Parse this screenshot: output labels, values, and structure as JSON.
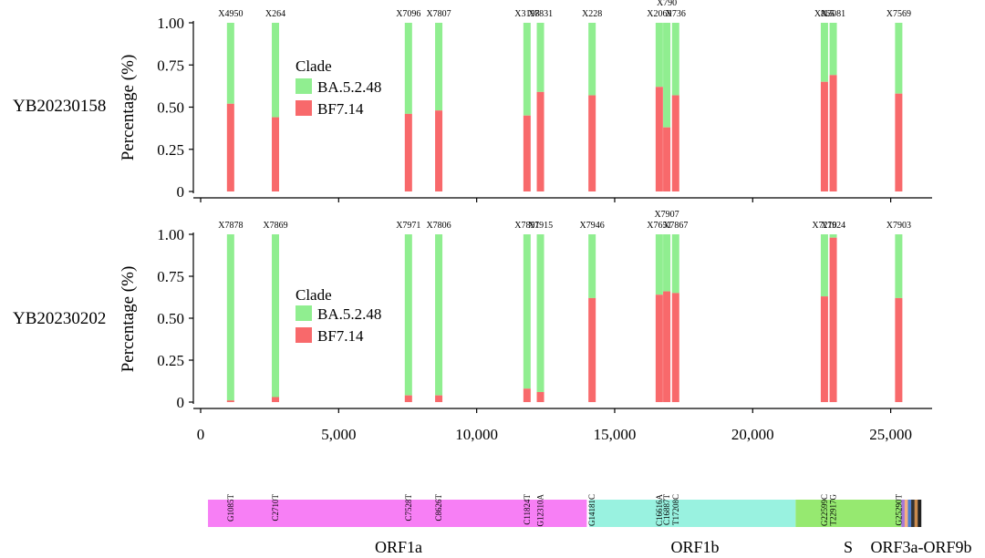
{
  "colors": {
    "ba": "#90EE90",
    "bf": "#F8696B",
    "axis": "#000000",
    "genes": {
      "ORF1a": "#F77FF5",
      "ORF1b": "#99F2E0",
      "S": "#96E970",
      "small": [
        "#A678D8",
        "#F4B183",
        "#4F7FD0",
        "#333333",
        "#C98A4E",
        "#222222"
      ]
    }
  },
  "chart_data": [
    {
      "type": "bar",
      "stacked": true,
      "sample": "YB20230158",
      "ylabel": "Percentage (%)",
      "ylim": [
        0,
        1
      ],
      "yticks": [
        0,
        0.25,
        0.5,
        0.75,
        1.0
      ],
      "ytick_labels": [
        "0",
        "0.25",
        "0.50",
        "0.75",
        "1.00"
      ],
      "legend": {
        "title": "Clade",
        "entries": [
          "BA.5.2.48",
          "BF7.14"
        ]
      },
      "positions": [
        1085,
        2710,
        7528,
        8626,
        11824,
        12310,
        14181,
        16616,
        16887,
        17208,
        22599,
        22917,
        25290
      ],
      "labels": [
        "X4950",
        "X264",
        "X7096",
        "X7807",
        "X3198",
        "X7831",
        "X228",
        "X2069",
        "X790",
        "X736",
        "X865",
        "X3081",
        "X7569"
      ],
      "bf_fraction": [
        0.52,
        0.44,
        0.46,
        0.48,
        0.45,
        0.59,
        0.57,
        0.62,
        0.38,
        0.57,
        0.65,
        0.69,
        0.58
      ]
    },
    {
      "type": "bar",
      "stacked": true,
      "sample": "YB20230202",
      "ylabel": "Percentage (%)",
      "ylim": [
        0,
        1
      ],
      "yticks": [
        0,
        0.25,
        0.5,
        0.75,
        1.0
      ],
      "ytick_labels": [
        "0",
        "0.25",
        "0.50",
        "0.75",
        "1.00"
      ],
      "legend": {
        "title": "Clade",
        "entries": [
          "BA.5.2.48",
          "BF7.14"
        ]
      },
      "positions": [
        1085,
        2710,
        7528,
        8626,
        11824,
        12310,
        14181,
        16616,
        16887,
        17208,
        22599,
        22917,
        25290
      ],
      "labels": [
        "X7878",
        "X7869",
        "X7971",
        "X7806",
        "X7891",
        "X7915",
        "X7946",
        "X7651",
        "X7907",
        "X7867",
        "X7210",
        "X7924",
        "X7903"
      ],
      "bf_fraction": [
        0.01,
        0.03,
        0.04,
        0.04,
        0.08,
        0.06,
        0.62,
        0.64,
        0.66,
        0.65,
        0.63,
        0.98,
        0.62
      ]
    }
  ],
  "xaxis": {
    "xlim": [
      0,
      26500
    ],
    "ticks": [
      0,
      5000,
      10000,
      15000,
      20000,
      25000
    ],
    "tick_labels": [
      "0",
      "5,000",
      "10,000",
      "15,000",
      "20,000",
      "25,000"
    ]
  },
  "mutations": {
    "positions": [
      1085,
      2710,
      7528,
      8626,
      11824,
      12310,
      14181,
      16616,
      16887,
      17208,
      22599,
      22917,
      25290
    ],
    "labels": [
      "G1085T",
      "C2710T",
      "C7528T",
      "C8626T",
      "C11824T",
      "G12310A",
      "G14181C",
      "C16616A",
      "C16887T",
      "T17208C",
      "G22599C",
      "T22917G",
      "G25290T"
    ]
  },
  "genes": [
    {
      "name": "ORF1a",
      "start": 266,
      "end": 13990,
      "label": "ORF1a"
    },
    {
      "name": "ORF1b",
      "start": 14080,
      "end": 21555,
      "label": "ORF1b"
    },
    {
      "name": "S",
      "start": 21555,
      "end": 25384,
      "label": "S"
    },
    {
      "name": "ORF3a-ORF9b",
      "start": 25384,
      "end": 26100,
      "label": "ORF3a-ORF9b"
    }
  ]
}
